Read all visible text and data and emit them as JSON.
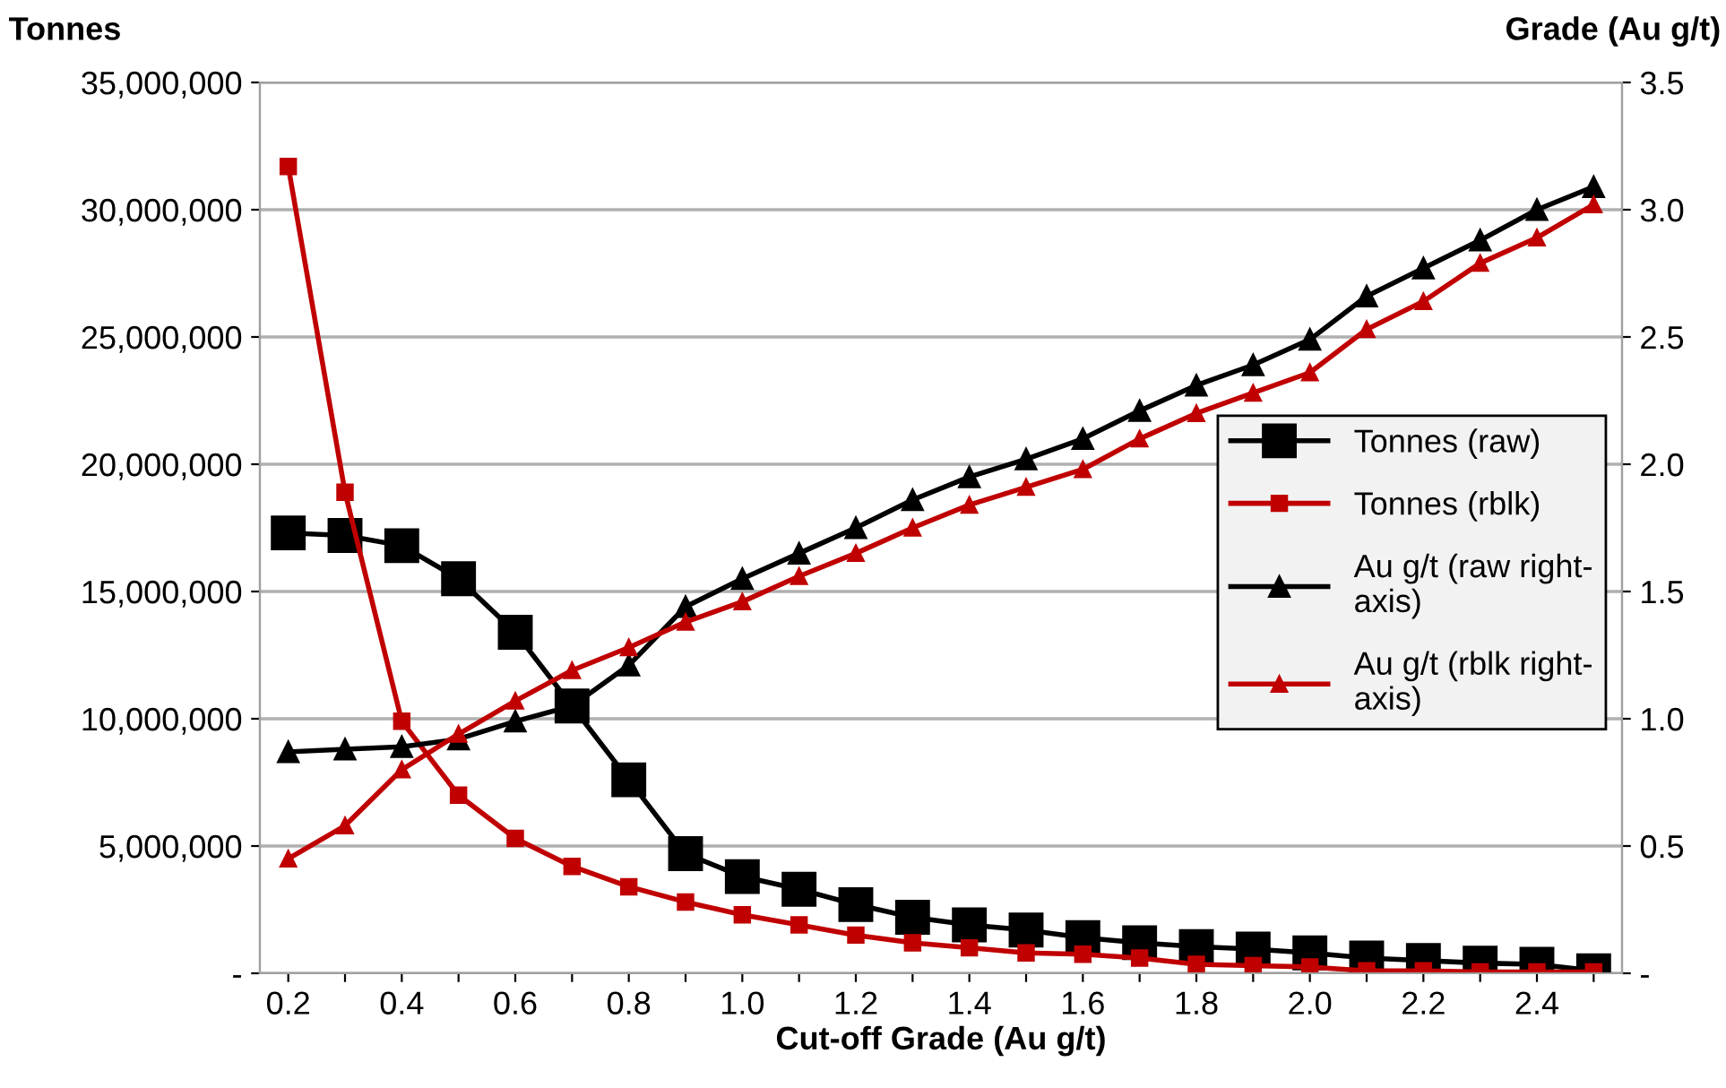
{
  "chart_data": {
    "type": "line",
    "xlabel": "Cut-off Grade (Au g/t)",
    "ylabel": "Tonnes",
    "y2label": "Grade (Au g/t)",
    "categories": [
      "0.2",
      null,
      "0.4",
      null,
      "0.6",
      null,
      "0.8",
      null,
      "1.0",
      null,
      "1.2",
      null,
      "1.4",
      null,
      "1.6",
      null,
      "1.8",
      null,
      "2.0",
      null,
      "2.2",
      null,
      "2.4",
      null
    ],
    "series": [
      {
        "name": "Tonnes (raw)",
        "color": "#000000",
        "marker": "square",
        "values": [
          17300000,
          17200000,
          16800000,
          15500000,
          13400000,
          10500000,
          7600000,
          4700000,
          3800000,
          3300000,
          2700000,
          2200000,
          1900000,
          1700000,
          1400000,
          1200000,
          1050000,
          950000,
          800000,
          600000,
          500000,
          400000,
          350000,
          100000
        ]
      },
      {
        "name": "Tonnes (rblk)",
        "color": "#c00000",
        "marker": "square",
        "values": [
          31700000,
          18900000,
          9900000,
          7000000,
          5300000,
          4200000,
          3400000,
          2800000,
          2300000,
          1900000,
          1500000,
          1200000,
          1000000,
          800000,
          750000,
          600000,
          350000,
          300000,
          250000,
          100000,
          100000,
          50000,
          50000,
          50000
        ]
      },
      {
        "name": "Au g/t (raw right-axis)",
        "color": "#000000",
        "marker": "triangle",
        "axis": "y2",
        "values": [
          0.87,
          0.88,
          0.89,
          0.92,
          0.99,
          1.05,
          1.21,
          1.44,
          1.55,
          1.65,
          1.75,
          1.86,
          1.95,
          2.02,
          2.1,
          2.21,
          2.31,
          2.39,
          2.49,
          2.66,
          2.77,
          2.88,
          3.0,
          3.09
        ]
      },
      {
        "name": "Au g/t (rblk right-axis)",
        "color": "#c00000",
        "marker": "triangle",
        "axis": "y2",
        "values": [
          0.45,
          0.58,
          0.8,
          0.94,
          1.07,
          1.19,
          1.28,
          1.38,
          1.46,
          1.56,
          1.65,
          1.75,
          1.84,
          1.91,
          1.98,
          2.1,
          2.2,
          2.28,
          2.36,
          2.53,
          2.64,
          2.79,
          2.89,
          3.02
        ]
      }
    ],
    "ylim": [
      0,
      35000000
    ],
    "yticks": [
      {
        "value": 0,
        "label": "-"
      },
      {
        "value": 5000000,
        "label": "5,000,000"
      },
      {
        "value": 10000000,
        "label": "10,000,000"
      },
      {
        "value": 15000000,
        "label": "15,000,000"
      },
      {
        "value": 20000000,
        "label": "20,000,000"
      },
      {
        "value": 25000000,
        "label": "25,000,000"
      },
      {
        "value": 30000000,
        "label": "30,000,000"
      },
      {
        "value": 35000000,
        "label": "35,000,000"
      }
    ],
    "y2lim": [
      0,
      3.5
    ],
    "y2ticks": [
      {
        "value": 0,
        "label": "-"
      },
      0.5,
      {
        "value": 1,
        "label": "1.0"
      },
      1.5,
      {
        "value": 2,
        "label": "2.0"
      },
      2.5,
      {
        "value": 3,
        "label": "3.0"
      },
      3.5
    ],
    "grid": "y",
    "legend": "right",
    "line_style": "solid"
  }
}
